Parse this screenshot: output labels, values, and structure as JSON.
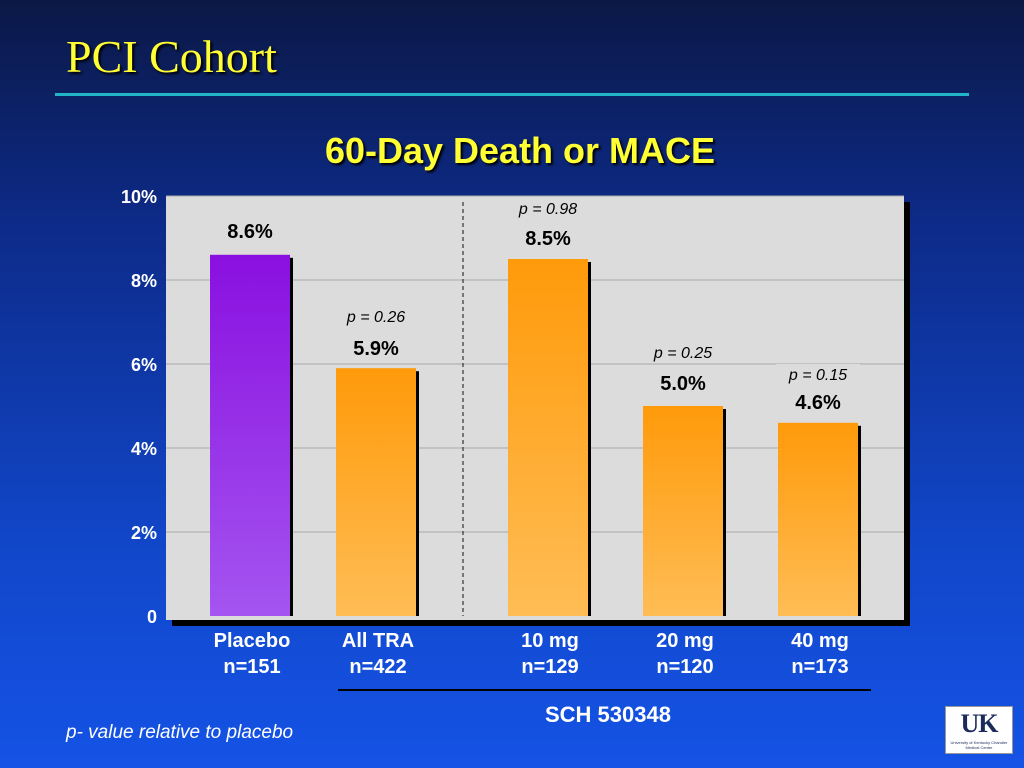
{
  "slide": {
    "title": "PCI Cohort",
    "footnote": "p- value relative to placebo",
    "logo": {
      "mark": "UK",
      "subtitle": "University of Kentucky Chandler Medical Center"
    }
  },
  "chart_data": {
    "type": "bar",
    "title": "60-Day Death or MACE",
    "ylim": [
      0,
      10
    ],
    "yticks": [
      {
        "value": 0,
        "label": "0"
      },
      {
        "value": 2,
        "label": "2%"
      },
      {
        "value": 4,
        "label": "4%"
      },
      {
        "value": 6,
        "label": "6%"
      },
      {
        "value": 8,
        "label": "8%"
      },
      {
        "value": 10,
        "label": "10%"
      }
    ],
    "grid": true,
    "categories": [
      {
        "name": "Placebo",
        "n": "n=151",
        "value": 8.6,
        "label": "8.6%",
        "p": "",
        "color": "purple"
      },
      {
        "name": "All TRA",
        "n": "n=422",
        "value": 5.9,
        "label": "5.9%",
        "p": "p = 0.26",
        "color": "orange"
      },
      {
        "name": "10 mg",
        "n": "n=129",
        "value": 8.5,
        "label": "8.5%",
        "p": "p = 0.98",
        "color": "orange"
      },
      {
        "name": "20 mg",
        "n": "n=120",
        "value": 5.0,
        "label": "5.0%",
        "p": "p = 0.25",
        "color": "orange"
      },
      {
        "name": "40 mg",
        "n": "n=173",
        "value": 4.6,
        "label": "4.6%",
        "p": "p = 0.15",
        "color": "orange"
      }
    ],
    "group_label": "SCH 530348",
    "colors": {
      "purple_top": "#8a10e0",
      "purple_bottom": "#a455f0",
      "orange_top": "#ff9a0a",
      "orange_bottom": "#ffbd55",
      "plot_bg": "#dcdcdc",
      "label": "#000000",
      "axis_text": "#ffffff"
    }
  }
}
